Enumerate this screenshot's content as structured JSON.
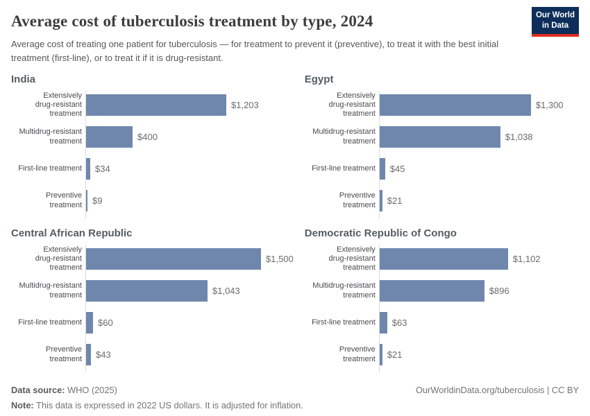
{
  "header": {
    "title": "Average cost of tuberculosis treatment by type, 2024",
    "subtitle": "Average cost of treating one patient for tuberculosis — for treatment to prevent it (preventive), to treat it with the best initial treatment (first-line), or to treat it if it is drug-resistant.",
    "logo_line1": "Our World",
    "logo_line2": "in Data",
    "logo_colors": {
      "background": "#0d2e5a",
      "accent": "#e02d20"
    }
  },
  "chart_data": [
    {
      "type": "bar",
      "orientation": "horizontal",
      "title": "India",
      "categories": [
        "Extensively\ndrug-resistant\ntreatment",
        "Multidrug-resistant\ntreatment",
        "First-line treatment",
        "Preventive\ntreatment"
      ],
      "values": [
        1203,
        400,
        34,
        9
      ],
      "value_labels": [
        "$1,203",
        "$400",
        "$34",
        "$9"
      ],
      "xlim": [
        0,
        1500
      ],
      "grid": false,
      "bar_color": "#6f87ad"
    },
    {
      "type": "bar",
      "orientation": "horizontal",
      "title": "Egypt",
      "categories": [
        "Extensively\ndrug-resistant\ntreatment",
        "Multidrug-resistant\ntreatment",
        "First-line treatment",
        "Preventive\ntreatment"
      ],
      "values": [
        1300,
        1038,
        45,
        21
      ],
      "value_labels": [
        "$1,300",
        "$1,038",
        "$45",
        "$21"
      ],
      "xlim": [
        0,
        1500
      ],
      "grid": false,
      "bar_color": "#6f87ad"
    },
    {
      "type": "bar",
      "orientation": "horizontal",
      "title": "Central African Republic",
      "categories": [
        "Extensively\ndrug-resistant\ntreatment",
        "Multidrug-resistant\ntreatment",
        "First-line treatment",
        "Preventive\ntreatment"
      ],
      "values": [
        1500,
        1043,
        60,
        43
      ],
      "value_labels": [
        "$1,500",
        "$1,043",
        "$60",
        "$43"
      ],
      "xlim": [
        0,
        1500
      ],
      "grid": false,
      "bar_color": "#6f87ad"
    },
    {
      "type": "bar",
      "orientation": "horizontal",
      "title": "Democratic Republic of Congo",
      "categories": [
        "Extensively\ndrug-resistant\ntreatment",
        "Multidrug-resistant\ntreatment",
        "First-line treatment",
        "Preventive\ntreatment"
      ],
      "values": [
        1102,
        896,
        63,
        21
      ],
      "value_labels": [
        "$1,102",
        "$896",
        "$63",
        "$21"
      ],
      "xlim": [
        0,
        1500
      ],
      "grid": false,
      "bar_color": "#6f87ad"
    }
  ],
  "footer": {
    "datasource_label": "Data source:",
    "datasource_value": "WHO (2025)",
    "note_label": "Note:",
    "note_value": "This data is expressed in 2022 US dollars. It is adjusted for inflation.",
    "link": "OurWorldinData.org/tuberculosis | CC BY"
  }
}
